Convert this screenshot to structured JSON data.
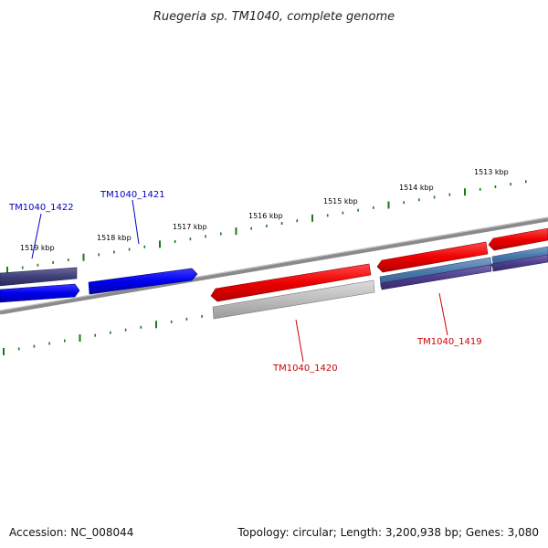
{
  "title": "Ruegeria sp. TM1040, complete genome",
  "footer": {
    "accession": "Accession: NC_008044",
    "summary": "Topology: circular; Length: 3,200,938 bp; Genes: 3,080"
  },
  "scale_labels": [
    "1519 kbp",
    "1518 kbp",
    "1517 kbp",
    "1516 kbp",
    "1515 kbp",
    "1514 kbp",
    "1513 kbp"
  ],
  "gene_labels": [
    {
      "name": "TM1040_1422",
      "strand": "plus"
    },
    {
      "name": "TM1040_1421",
      "strand": "plus"
    },
    {
      "name": "TM1040_1420",
      "strand": "minus"
    },
    {
      "name": "TM1040_1419",
      "strand": "minus"
    }
  ],
  "colors": {
    "plus_strand": "#0000cc",
    "minus_strand": "#cc0000",
    "tick": "#1a7a1a",
    "backbone": "#808080"
  }
}
